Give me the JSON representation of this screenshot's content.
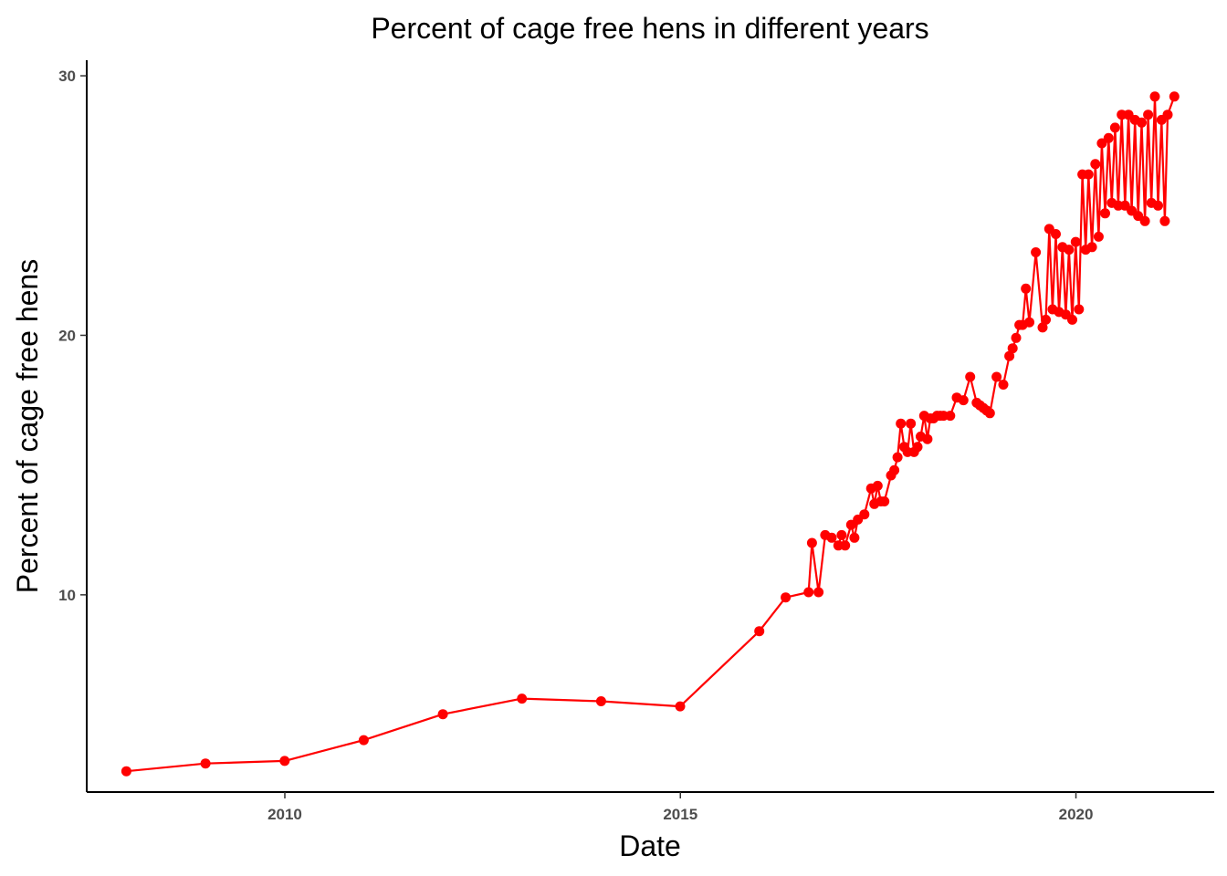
{
  "chart_data": {
    "type": "line",
    "title": "Percent of cage free hens in different years",
    "xlabel": "Date",
    "ylabel": "Percent of cage free hens",
    "x_ticks": [
      "2010",
      "2015",
      "2020"
    ],
    "y_ticks": [
      "10",
      "20",
      "30"
    ],
    "xlim": [
      "2007-07-01",
      "2021-10-01"
    ],
    "ylim": [
      2.4,
      30.6
    ],
    "grid": false,
    "legend": "none",
    "color": "#ff0000",
    "series": [
      {
        "x": [
          "2007-12-31",
          "2008-12-31",
          "2009-12-31",
          "2010-12-31",
          "2011-12-31",
          "2012-12-31",
          "2013-12-31",
          "2014-12-31",
          "2015-12-31",
          "2016-05-01",
          "2016-08-15",
          "2016-08-31",
          "2016-09-30",
          "2016-10-31",
          "2016-11-30",
          "2016-12-31",
          "2017-01-15",
          "2017-01-31",
          "2017-02-28",
          "2017-03-15",
          "2017-03-31",
          "2017-04-30",
          "2017-05-31",
          "2017-06-15",
          "2017-06-30",
          "2017-07-15",
          "2017-07-31",
          "2017-08-31",
          "2017-09-15",
          "2017-09-30",
          "2017-10-15",
          "2017-10-31",
          "2017-11-15",
          "2017-11-30",
          "2017-12-15",
          "2017-12-31",
          "2018-01-15",
          "2018-01-31",
          "2018-02-15",
          "2018-02-28",
          "2018-03-15",
          "2018-03-31",
          "2018-04-15",
          "2018-04-30",
          "2018-05-31",
          "2018-06-30",
          "2018-07-31",
          "2018-08-31",
          "2018-09-30",
          "2018-10-15",
          "2018-10-31",
          "2018-11-15",
          "2018-11-30",
          "2018-12-31",
          "2019-01-31",
          "2019-02-28",
          "2019-03-15",
          "2019-03-31",
          "2019-04-15",
          "2019-04-30",
          "2019-05-15",
          "2019-05-31",
          "2019-06-30",
          "2019-07-31",
          "2019-08-15",
          "2019-08-31",
          "2019-09-15",
          "2019-09-30",
          "2019-10-15",
          "2019-10-31",
          "2019-11-15",
          "2019-11-30",
          "2019-12-15",
          "2019-12-31",
          "2020-01-15",
          "2020-01-31",
          "2020-02-15",
          "2020-02-28",
          "2020-03-15",
          "2020-03-31",
          "2020-04-15",
          "2020-04-30",
          "2020-05-15",
          "2020-05-31",
          "2020-06-15",
          "2020-06-30",
          "2020-07-15",
          "2020-07-31",
          "2020-08-15",
          "2020-08-31",
          "2020-09-15",
          "2020-09-30",
          "2020-10-15",
          "2020-10-31",
          "2020-11-15",
          "2020-11-30",
          "2020-12-15",
          "2020-12-31",
          "2021-01-15",
          "2021-01-31",
          "2021-02-15",
          "2021-02-28",
          "2021-03-31"
        ],
        "y": [
          3.2,
          3.5,
          3.6,
          4.4,
          5.4,
          6.0,
          5.9,
          5.7,
          8.6,
          9.9,
          10.1,
          12.0,
          10.1,
          12.3,
          12.2,
          11.9,
          12.3,
          11.9,
          12.7,
          12.2,
          12.9,
          13.1,
          14.1,
          13.5,
          14.2,
          13.6,
          13.6,
          14.6,
          14.8,
          15.3,
          16.6,
          15.7,
          15.5,
          16.6,
          15.5,
          15.7,
          16.1,
          16.9,
          16.0,
          16.8,
          16.8,
          16.9,
          16.9,
          16.9,
          16.9,
          17.6,
          17.5,
          18.4,
          17.4,
          17.3,
          17.2,
          17.1,
          17.0,
          18.4,
          18.1,
          19.2,
          19.5,
          19.9,
          20.4,
          20.4,
          21.8,
          20.5,
          23.2,
          20.3,
          20.6,
          24.1,
          21.0,
          23.9,
          20.9,
          23.4,
          20.8,
          23.3,
          20.6,
          23.6,
          21.0,
          26.2,
          23.3,
          26.2,
          23.4,
          26.6,
          23.8,
          27.4,
          24.7,
          27.6,
          25.1,
          28.0,
          25.0,
          28.5,
          25.0,
          28.5,
          24.8,
          28.3,
          24.6,
          28.2,
          24.4,
          28.5,
          25.1,
          29.2,
          25.0,
          28.3,
          24.4,
          28.5,
          29.2
        ]
      }
    ]
  }
}
